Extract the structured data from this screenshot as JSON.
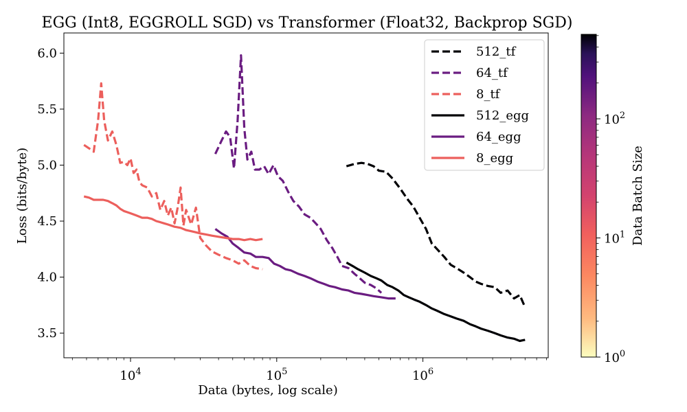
{
  "chart_data": {
    "type": "line",
    "title": "EGG (Int8, EGGROLL SGD) vs Transformer (Float32, Backprop SGD)",
    "xlabel": "Data (bytes, log scale)",
    "ylabel": "Loss (bits/byte)",
    "xscale": "log",
    "xlim": [
      3500,
      7200000
    ],
    "ylim": [
      3.28,
      6.18
    ],
    "grid": false,
    "legend_placement": "top-right",
    "x_ticks": [
      {
        "value": 10000,
        "base": "10",
        "exp": "4"
      },
      {
        "value": 100000,
        "base": "10",
        "exp": "5"
      },
      {
        "value": 1000000,
        "base": "10",
        "exp": "6"
      }
    ],
    "y_ticks": [
      {
        "value": 3.5,
        "label": "3.5"
      },
      {
        "value": 4.0,
        "label": "4.0"
      },
      {
        "value": 4.5,
        "label": "4.5"
      },
      {
        "value": 5.0,
        "label": "5.0"
      },
      {
        "value": 5.5,
        "label": "5.5"
      },
      {
        "value": 6.0,
        "label": "6.0"
      }
    ],
    "colorbar": {
      "label": "Data Batch Size",
      "scale": "log",
      "min": 1,
      "max": 512,
      "colormap": "magma_r",
      "ticks": [
        {
          "value": 1,
          "base": "10",
          "exp": "0"
        },
        {
          "value": 10,
          "base": "10",
          "exp": "1"
        },
        {
          "value": 100,
          "base": "10",
          "exp": "2"
        }
      ]
    },
    "series": [
      {
        "name": "512_tf",
        "color": "#000004",
        "dash": true,
        "x": [
          300000,
          340000,
          380000,
          420000,
          460000,
          500000,
          560000,
          620000,
          700000,
          780000,
          860000,
          950000,
          1050000,
          1150000,
          1250000,
          1400000,
          1550000,
          1700000,
          1900000,
          2100000,
          2300000,
          2500000,
          2800000,
          3100000,
          3400000,
          3800000,
          4200000,
          4600000,
          5000000
        ],
        "y": [
          4.99,
          5.01,
          5.02,
          5.01,
          4.99,
          4.95,
          4.94,
          4.88,
          4.79,
          4.7,
          4.63,
          4.53,
          4.43,
          4.3,
          4.25,
          4.18,
          4.11,
          4.08,
          4.04,
          4.0,
          3.96,
          3.94,
          3.92,
          3.91,
          3.86,
          3.88,
          3.81,
          3.84,
          3.73
        ]
      },
      {
        "name": "64_tf",
        "color": "#6a1c81",
        "dash": true,
        "x": [
          38000,
          42000,
          45000,
          48000,
          51000,
          54000,
          57000,
          60000,
          63000,
          67000,
          71000,
          76000,
          82000,
          88000,
          95000,
          102000,
          110000,
          120000,
          130000,
          142000,
          155000,
          170000,
          185000,
          200000,
          220000,
          240000,
          260000,
          280000,
          310000,
          340000,
          370000,
          400000,
          440000,
          480000,
          520000
        ],
        "y": [
          5.1,
          5.22,
          5.3,
          5.25,
          4.97,
          5.4,
          5.98,
          5.33,
          5.05,
          5.12,
          4.96,
          4.96,
          4.99,
          4.92,
          5.0,
          4.9,
          4.86,
          4.76,
          4.68,
          4.63,
          4.56,
          4.53,
          4.48,
          4.43,
          4.33,
          4.26,
          4.18,
          4.1,
          4.08,
          4.03,
          3.99,
          3.95,
          3.93,
          3.9,
          3.86
        ]
      },
      {
        "name": "8_tf",
        "color": "#ec5f5c",
        "dash": true,
        "x": [
          4800,
          5200,
          5600,
          6000,
          6300,
          6600,
          7000,
          7500,
          8000,
          8500,
          9000,
          9500,
          10000,
          10500,
          11000,
          11500,
          12000,
          13000,
          14000,
          15000,
          16000,
          17000,
          18000,
          19000,
          20000,
          21000,
          22000,
          23000,
          24000,
          26000,
          28000,
          30000,
          33000,
          36000,
          40000,
          45000,
          50000,
          55000,
          60000,
          66000,
          72000,
          80000
        ],
        "y": [
          5.18,
          5.15,
          5.12,
          5.4,
          5.73,
          5.4,
          5.22,
          5.3,
          5.18,
          5.02,
          5.03,
          5.0,
          5.06,
          4.93,
          4.96,
          4.85,
          4.82,
          4.8,
          4.72,
          4.75,
          4.6,
          4.68,
          4.55,
          4.62,
          4.48,
          4.62,
          4.8,
          4.46,
          4.6,
          4.47,
          4.62,
          4.35,
          4.28,
          4.23,
          4.2,
          4.17,
          4.15,
          4.12,
          4.15,
          4.1,
          4.08,
          4.07
        ]
      },
      {
        "name": "512_egg",
        "color": "#000004",
        "dash": false,
        "x": [
          300000,
          330000,
          360000,
          400000,
          440000,
          480000,
          520000,
          570000,
          620000,
          680000,
          740000,
          800000,
          870000,
          950000,
          1050000,
          1150000,
          1250000,
          1400000,
          1550000,
          1700000,
          1900000,
          2100000,
          2300000,
          2500000,
          2800000,
          3100000,
          3400000,
          3800000,
          4200000,
          4600000,
          5000000
        ],
        "y": [
          4.13,
          4.1,
          4.07,
          4.04,
          4.01,
          3.99,
          3.97,
          3.93,
          3.91,
          3.88,
          3.84,
          3.82,
          3.8,
          3.78,
          3.75,
          3.72,
          3.7,
          3.67,
          3.65,
          3.63,
          3.61,
          3.58,
          3.56,
          3.54,
          3.52,
          3.5,
          3.48,
          3.46,
          3.45,
          3.43,
          3.44
        ]
      },
      {
        "name": "64_egg",
        "color": "#6a1c81",
        "dash": false,
        "x": [
          38000,
          42000,
          46000,
          50000,
          55000,
          60000,
          66000,
          72000,
          80000,
          88000,
          96000,
          105000,
          115000,
          125000,
          140000,
          155000,
          170000,
          190000,
          210000,
          230000,
          250000,
          280000,
          310000,
          340000,
          380000,
          420000,
          460000,
          520000,
          580000,
          650000
        ],
        "y": [
          4.43,
          4.39,
          4.36,
          4.3,
          4.26,
          4.22,
          4.21,
          4.18,
          4.18,
          4.17,
          4.12,
          4.1,
          4.07,
          4.06,
          4.03,
          4.01,
          3.99,
          3.96,
          3.94,
          3.92,
          3.91,
          3.89,
          3.88,
          3.86,
          3.85,
          3.84,
          3.83,
          3.82,
          3.81,
          3.81
        ]
      },
      {
        "name": "8_egg",
        "color": "#ec5f5c",
        "dash": false,
        "x": [
          4800,
          5200,
          5600,
          6000,
          6500,
          7000,
          7500,
          8000,
          8500,
          9000,
          9500,
          10000,
          11000,
          12000,
          13000,
          14000,
          15000,
          16000,
          17000,
          18000,
          20000,
          22000,
          24000,
          26000,
          28000,
          30000,
          33000,
          36000,
          40000,
          45000,
          50000,
          55000,
          60000,
          66000,
          72000,
          80000
        ],
        "y": [
          4.72,
          4.71,
          4.69,
          4.69,
          4.69,
          4.68,
          4.66,
          4.64,
          4.61,
          4.59,
          4.58,
          4.57,
          4.55,
          4.53,
          4.53,
          4.52,
          4.5,
          4.49,
          4.48,
          4.47,
          4.45,
          4.44,
          4.42,
          4.41,
          4.4,
          4.39,
          4.38,
          4.37,
          4.36,
          4.35,
          4.34,
          4.34,
          4.33,
          4.34,
          4.33,
          4.34
        ]
      }
    ],
    "legend_order": [
      "512_tf",
      "64_tf",
      "8_tf",
      "512_egg",
      "64_egg",
      "8_egg"
    ]
  }
}
